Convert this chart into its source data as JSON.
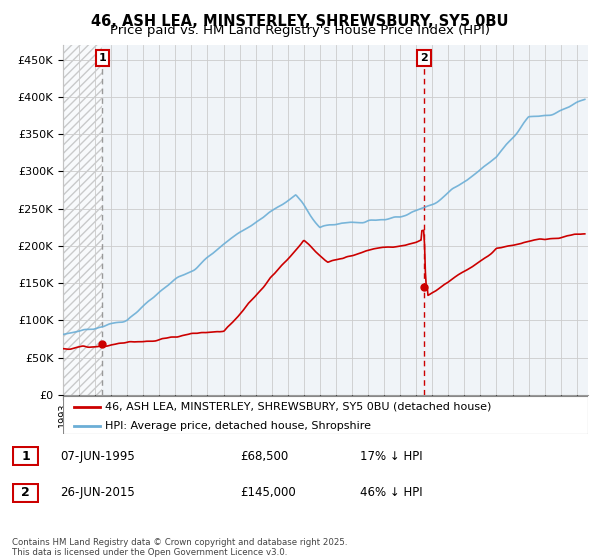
{
  "title": "46, ASH LEA, MINSTERLEY, SHREWSBURY, SY5 0BU",
  "subtitle": "Price paid vs. HM Land Registry's House Price Index (HPI)",
  "ylabel_ticks": [
    "£0",
    "£50K",
    "£100K",
    "£150K",
    "£200K",
    "£250K",
    "£300K",
    "£350K",
    "£400K",
    "£450K"
  ],
  "ytick_values": [
    0,
    50000,
    100000,
    150000,
    200000,
    250000,
    300000,
    350000,
    400000,
    450000
  ],
  "ylim": [
    0,
    470000
  ],
  "xlim_start": 1993.0,
  "xlim_end": 2025.7,
  "hpi_color": "#6baed6",
  "price_color": "#cc0000",
  "sale1_x": 1995.44,
  "sale1_y": 68500,
  "sale2_x": 2015.49,
  "sale2_y": 145000,
  "legend_label_price": "46, ASH LEA, MINSTERLEY, SHREWSBURY, SY5 0BU (detached house)",
  "legend_label_hpi": "HPI: Average price, detached house, Shropshire",
  "table_rows": [
    {
      "num": "1",
      "date": "07-JUN-1995",
      "price": "£68,500",
      "hpi": "17% ↓ HPI"
    },
    {
      "num": "2",
      "date": "26-JUN-2015",
      "price": "£145,000",
      "hpi": "46% ↓ HPI"
    }
  ],
  "footer": "Contains HM Land Registry data © Crown copyright and database right 2025.\nThis data is licensed under the Open Government Licence v3.0.",
  "title_fontsize": 10.5,
  "subtitle_fontsize": 9.5
}
